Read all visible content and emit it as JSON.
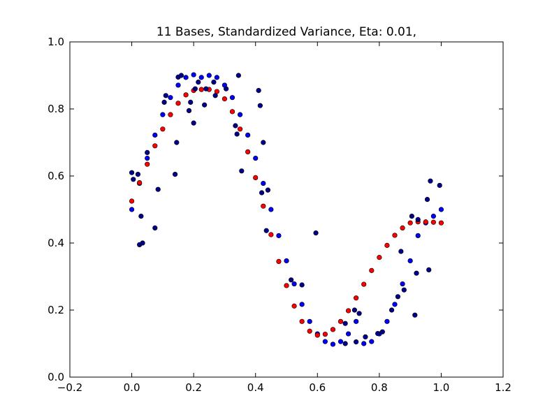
{
  "chart_data": {
    "type": "scatter",
    "title": "11 Bases, Standardized Variance, Eta: 0.01,",
    "xlabel": "",
    "ylabel": "",
    "xlim": [
      -0.2,
      1.2
    ],
    "ylim": [
      0.0,
      1.0
    ],
    "x_ticks": [
      "−0.2",
      "0.0",
      "0.2",
      "0.4",
      "0.6",
      "0.8",
      "1.0",
      "1.2"
    ],
    "y_ticks": [
      "0.0",
      "0.2",
      "0.4",
      "0.6",
      "0.8",
      "1.0"
    ],
    "grid": false,
    "series": [
      {
        "color": "#0000ff",
        "values": [
          [
            0.0,
            0.5
          ],
          [
            0.025,
            0.578
          ],
          [
            0.05,
            0.653
          ],
          [
            0.075,
            0.722
          ],
          [
            0.1,
            0.783
          ],
          [
            0.125,
            0.834
          ],
          [
            0.15,
            0.871
          ],
          [
            0.175,
            0.894
          ],
          [
            0.2,
            0.902
          ],
          [
            0.225,
            0.894
          ],
          [
            0.25,
            0.9
          ],
          [
            0.275,
            0.894
          ],
          [
            0.3,
            0.871
          ],
          [
            0.325,
            0.834
          ],
          [
            0.35,
            0.783
          ],
          [
            0.375,
            0.722
          ],
          [
            0.4,
            0.653
          ],
          [
            0.425,
            0.578
          ],
          [
            0.45,
            0.5
          ],
          [
            0.475,
            0.422
          ],
          [
            0.5,
            0.347
          ],
          [
            0.525,
            0.278
          ],
          [
            0.55,
            0.217
          ],
          [
            0.575,
            0.166
          ],
          [
            0.6,
            0.129
          ],
          [
            0.625,
            0.106
          ],
          [
            0.65,
            0.098
          ],
          [
            0.675,
            0.106
          ],
          [
            0.7,
            0.129
          ],
          [
            0.725,
            0.166
          ],
          [
            0.75,
            0.1
          ],
          [
            0.775,
            0.106
          ],
          [
            0.8,
            0.129
          ],
          [
            0.825,
            0.166
          ],
          [
            0.85,
            0.217
          ],
          [
            0.875,
            0.278
          ],
          [
            0.9,
            0.347
          ],
          [
            0.925,
            0.422
          ],
          [
            0.95,
            0.46
          ],
          [
            0.975,
            0.48
          ],
          [
            1.0,
            0.5
          ]
        ]
      },
      {
        "color": "#ff0000",
        "values": [
          [
            0.0,
            0.525
          ],
          [
            0.025,
            0.58
          ],
          [
            0.05,
            0.635
          ],
          [
            0.075,
            0.69
          ],
          [
            0.1,
            0.74
          ],
          [
            0.125,
            0.783
          ],
          [
            0.15,
            0.817
          ],
          [
            0.175,
            0.842
          ],
          [
            0.2,
            0.855
          ],
          [
            0.225,
            0.858
          ],
          [
            0.25,
            0.858
          ],
          [
            0.275,
            0.852
          ],
          [
            0.3,
            0.83
          ],
          [
            0.325,
            0.792
          ],
          [
            0.35,
            0.74
          ],
          [
            0.375,
            0.672
          ],
          [
            0.4,
            0.595
          ],
          [
            0.425,
            0.51
          ],
          [
            0.45,
            0.425
          ],
          [
            0.475,
            0.345
          ],
          [
            0.5,
            0.273
          ],
          [
            0.525,
            0.212
          ],
          [
            0.55,
            0.166
          ],
          [
            0.575,
            0.137
          ],
          [
            0.6,
            0.125
          ],
          [
            0.625,
            0.128
          ],
          [
            0.65,
            0.142
          ],
          [
            0.675,
            0.166
          ],
          [
            0.7,
            0.198
          ],
          [
            0.725,
            0.236
          ],
          [
            0.75,
            0.277
          ],
          [
            0.775,
            0.318
          ],
          [
            0.8,
            0.357
          ],
          [
            0.825,
            0.393
          ],
          [
            0.85,
            0.423
          ],
          [
            0.875,
            0.445
          ],
          [
            0.9,
            0.46
          ],
          [
            0.925,
            0.463
          ],
          [
            0.95,
            0.463
          ],
          [
            0.975,
            0.462
          ],
          [
            1.0,
            0.46
          ]
        ]
      },
      {
        "color": "#00008b",
        "values": [
          [
            0.0,
            0.61
          ],
          [
            0.005,
            0.59
          ],
          [
            0.02,
            0.605
          ],
          [
            0.025,
            0.395
          ],
          [
            0.03,
            0.48
          ],
          [
            0.035,
            0.4
          ],
          [
            0.05,
            0.67
          ],
          [
            0.075,
            0.445
          ],
          [
            0.085,
            0.56
          ],
          [
            0.105,
            0.82
          ],
          [
            0.11,
            0.84
          ],
          [
            0.14,
            0.605
          ],
          [
            0.145,
            0.7
          ],
          [
            0.15,
            0.895
          ],
          [
            0.16,
            0.9
          ],
          [
            0.185,
            0.795
          ],
          [
            0.19,
            0.82
          ],
          [
            0.2,
            0.758
          ],
          [
            0.205,
            0.86
          ],
          [
            0.215,
            0.88
          ],
          [
            0.235,
            0.812
          ],
          [
            0.24,
            0.86
          ],
          [
            0.265,
            0.88
          ],
          [
            0.27,
            0.84
          ],
          [
            0.305,
            0.86
          ],
          [
            0.335,
            0.75
          ],
          [
            0.34,
            0.725
          ],
          [
            0.345,
            0.9
          ],
          [
            0.355,
            0.615
          ],
          [
            0.41,
            0.855
          ],
          [
            0.415,
            0.81
          ],
          [
            0.42,
            0.55
          ],
          [
            0.425,
            0.7
          ],
          [
            0.435,
            0.437
          ],
          [
            0.44,
            0.558
          ],
          [
            0.515,
            0.29
          ],
          [
            0.55,
            0.275
          ],
          [
            0.595,
            0.43
          ],
          [
            0.69,
            0.16
          ],
          [
            0.69,
            0.1
          ],
          [
            0.72,
            0.2
          ],
          [
            0.725,
            0.105
          ],
          [
            0.735,
            0.19
          ],
          [
            0.755,
            0.12
          ],
          [
            0.795,
            0.13
          ],
          [
            0.81,
            0.135
          ],
          [
            0.84,
            0.2
          ],
          [
            0.86,
            0.24
          ],
          [
            0.87,
            0.375
          ],
          [
            0.88,
            0.26
          ],
          [
            0.905,
            0.48
          ],
          [
            0.915,
            0.185
          ],
          [
            0.92,
            0.31
          ],
          [
            0.925,
            0.47
          ],
          [
            0.955,
            0.53
          ],
          [
            0.96,
            0.32
          ],
          [
            0.965,
            0.585
          ],
          [
            0.995,
            0.572
          ]
        ]
      }
    ]
  }
}
